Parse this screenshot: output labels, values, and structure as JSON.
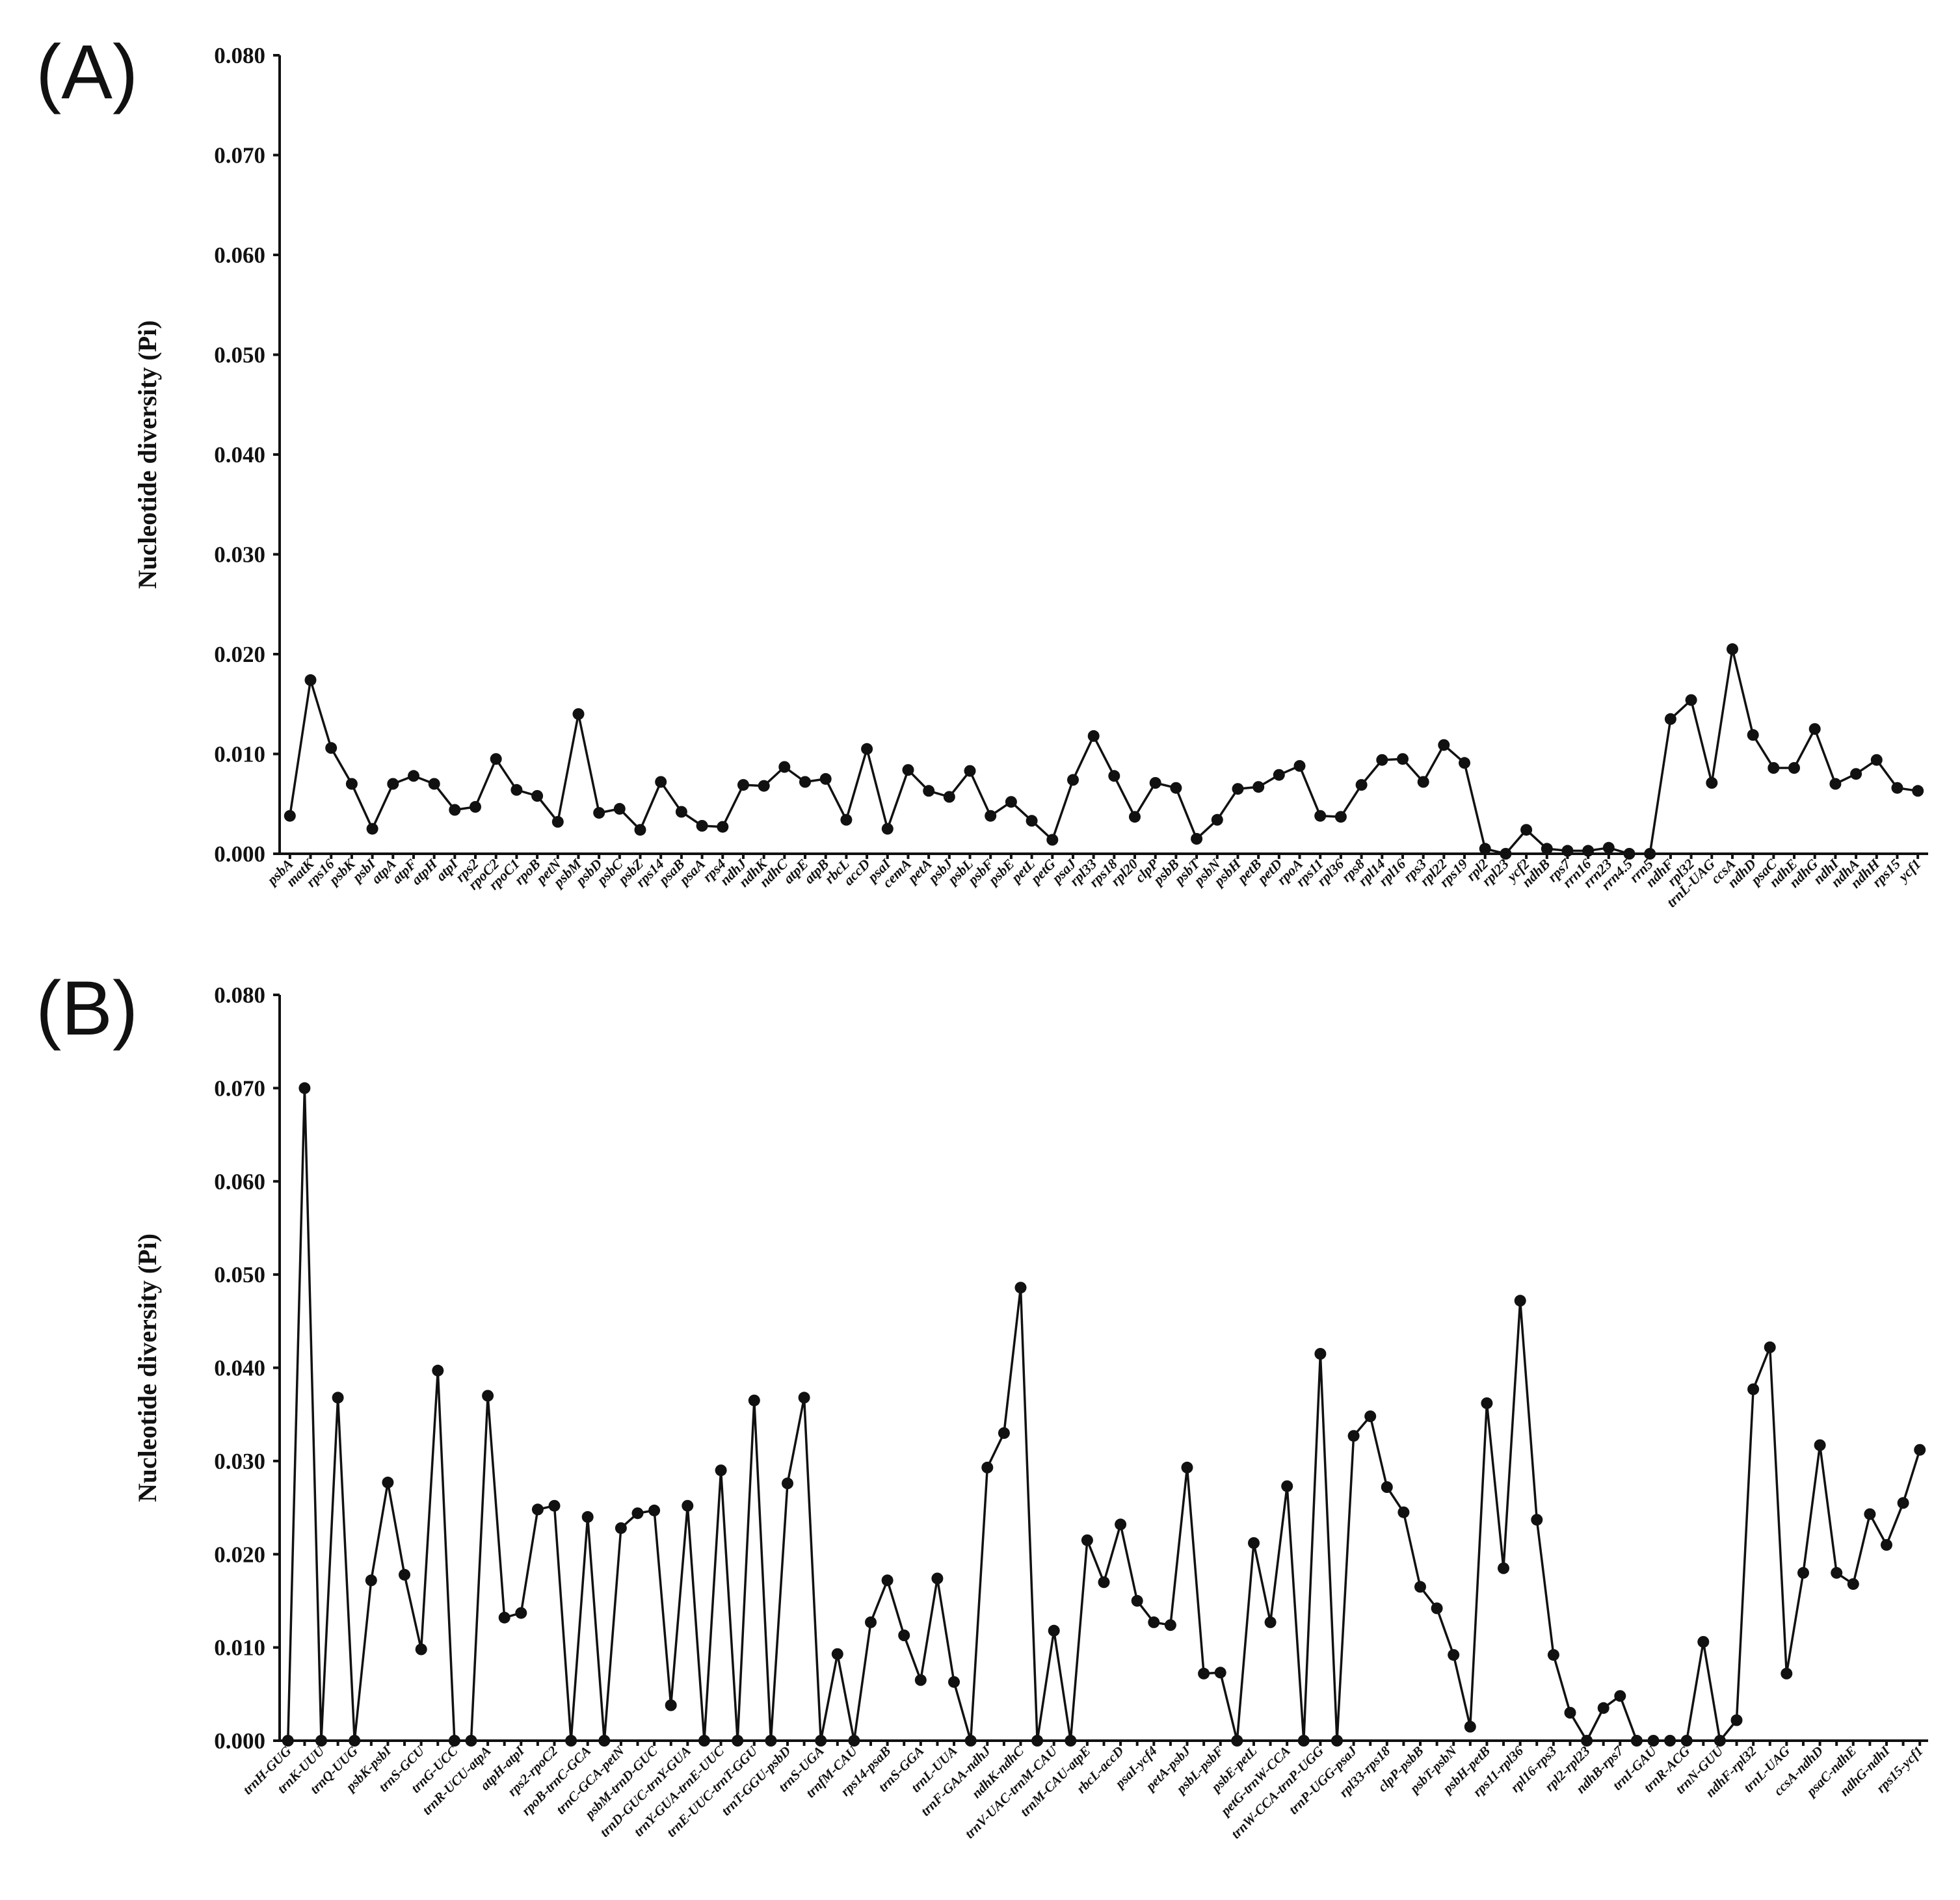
{
  "chart_data": [
    {
      "panel": "(A)",
      "type": "line",
      "ylabel": "Nucleotide diversity (Pi)",
      "xlabel": "",
      "ylim": [
        0,
        0.08
      ],
      "yticks": [
        "0.000",
        "0.010",
        "0.020",
        "0.030",
        "0.040",
        "0.050",
        "0.060",
        "0.070",
        "0.080"
      ],
      "grid": false,
      "categories": [
        "psbA",
        "matK",
        "rps16",
        "psbK",
        "psbI",
        "atpA",
        "atpF",
        "atpH",
        "atpI",
        "rps2",
        "rpoC2",
        "rpoC1",
        "rpoB",
        "petN",
        "psbM",
        "psbD",
        "psbC",
        "psbZ",
        "rps14",
        "psaB",
        "psaA",
        "rps4",
        "ndhJ",
        "ndhK",
        "ndhC",
        "atpE",
        "atpB",
        "rbcL",
        "accD",
        "psaI",
        "cemA",
        "petA",
        "psbJ",
        "psbL",
        "psbF",
        "psbE",
        "petL",
        "petG",
        "psaJ",
        "rpl33",
        "rps18",
        "rpl20",
        "clpP",
        "psbB",
        "psbT",
        "psbN",
        "psbH",
        "petB",
        "petD",
        "rpoA",
        "rps11",
        "rpl36",
        "rps8",
        "rpl14",
        "rpl16",
        "rps3",
        "rpl22",
        "rps19",
        "rpl2",
        "rpl23",
        "ycf2",
        "ndhB",
        "rps7",
        "rrn16",
        "rrn23",
        "rrn4.5",
        "rrn5",
        "ndhF",
        "rpl32",
        "trnL-UAG",
        "ccsA",
        "ndhD",
        "psaC",
        "ndhE",
        "ndhG",
        "ndhI",
        "ndhA",
        "ndhH",
        "rps15",
        "ycf1"
      ],
      "values": [
        0.0038,
        0.0174,
        0.0106,
        0.007,
        0.0025,
        0.007,
        0.0078,
        0.007,
        0.0044,
        0.0047,
        0.0095,
        0.0064,
        0.0058,
        0.0032,
        0.014,
        0.0041,
        0.0045,
        0.0024,
        0.0072,
        0.0042,
        0.0028,
        0.0027,
        0.0069,
        0.0068,
        0.0087,
        0.0072,
        0.0075,
        0.0034,
        0.0105,
        0.0025,
        0.0084,
        0.0063,
        0.0057,
        0.0083,
        0.0038,
        0.0052,
        0.0033,
        0.0014,
        0.0074,
        0.0118,
        0.0078,
        0.0037,
        0.0071,
        0.0066,
        0.0015,
        0.0034,
        0.0065,
        0.0067,
        0.0079,
        0.0088,
        0.0038,
        0.0037,
        0.0069,
        0.0094,
        0.0095,
        0.0072,
        0.0109,
        0.0091,
        0.0005,
        0.0,
        0.0024,
        0.0005,
        0.0003,
        0.0003,
        0.0006,
        0.0,
        0.0,
        0.0135,
        0.0154,
        0.0071,
        0.0205,
        0.0119,
        0.0086,
        0.0086,
        0.0125,
        0.007,
        0.008,
        0.0094,
        0.0066,
        0.0063
      ]
    },
    {
      "panel": "(B)",
      "type": "line",
      "ylabel": "Nucleotide diversity (Pi)",
      "xlabel": "",
      "ylim": [
        0,
        0.08
      ],
      "yticks": [
        "0.000",
        "0.010",
        "0.020",
        "0.030",
        "0.040",
        "0.050",
        "0.060",
        "0.070",
        "0.080"
      ],
      "grid": false,
      "categories": [
        "trnH-GUG",
        "",
        "trnK-UUU",
        "",
        "trnQ-UUG",
        "",
        "psbK-psbI",
        "",
        "trnS-GCU",
        "",
        "trnG-UCC",
        "",
        "trnR-UCU-atpA",
        "",
        "atpH-atpI",
        "",
        "rps2-rpoC2",
        "",
        "rpoB-trnC-GCA",
        "",
        "trnC-GCA-petN",
        "",
        "psbM-trnD-GUC",
        "",
        "trnD-GUC-trnY-GUA",
        "",
        "trnY-GUA-trnE-UUC",
        "",
        "trnE-UUC-trnT-GGU",
        "",
        "trnT-GGU-psbD",
        "",
        "trnS-UGA",
        "",
        "trnfM-CAU",
        "",
        "rps14-psaB",
        "",
        "trnS-GGA",
        "",
        "trnL-UUA",
        "",
        "trnF-GAA-ndhJ",
        "",
        "ndhK-ndhC",
        "",
        "trnV-UAC-trnM-CAU",
        "",
        "trnM-CAU-atpE",
        "",
        "rbcL-accD",
        "",
        "psaI-ycf4",
        "",
        "petA-psbJ",
        "",
        "psbL-psbF",
        "",
        "psbE-petL",
        "",
        "petG-trnW-CCA",
        "",
        "trnW-CCA-trnP-UGG",
        "",
        "trnP-UGG-psaJ",
        "",
        "rpl33-rps18",
        "",
        "clpP-psbB",
        "",
        "psbT-psbN",
        "",
        "psbH-petB",
        "",
        "rps11-rpl36",
        "",
        "rpl16-rps3",
        "",
        "rpl2-rpl23",
        "",
        "ndhB-rps7",
        "",
        "trnI-GAU",
        "",
        "trnR-ACG",
        "",
        "trnN-GUU",
        "",
        "ndhF-rpl32",
        "",
        "trnL-UAG",
        "",
        "ccsA-ndhD",
        "",
        "psaC-ndhE",
        "",
        "ndhG-ndhI",
        "",
        "rps15-ycf1"
      ],
      "values": [
        0.0,
        0.07,
        0.0,
        0.0368,
        0.0,
        0.0172,
        0.0277,
        0.0178,
        0.0098,
        0.0397,
        0.0,
        0.0,
        0.037,
        0.0132,
        0.0137,
        0.0248,
        0.0252,
        0.0,
        0.024,
        0.0,
        0.0228,
        0.0244,
        0.0247,
        0.0038,
        0.0252,
        0.0,
        0.029,
        0.0,
        0.0365,
        0.0,
        0.0276,
        0.0368,
        0.0,
        0.0093,
        0.0,
        0.0127,
        0.0172,
        0.0113,
        0.0065,
        0.0174,
        0.0063,
        0.0,
        0.0293,
        0.033,
        0.0486,
        0.0,
        0.0118,
        0.0,
        0.0215,
        0.017,
        0.0232,
        0.015,
        0.0127,
        0.0124,
        0.0293,
        0.0072,
        0.0073,
        0.0,
        0.0212,
        0.0127,
        0.0273,
        0.0,
        0.0415,
        0.0,
        0.0327,
        0.0348,
        0.0272,
        0.0245,
        0.0165,
        0.0142,
        0.0092,
        0.0015,
        0.0362,
        0.0185,
        0.0472,
        0.0237,
        0.0092,
        0.003,
        0.0,
        0.0035,
        0.0048,
        0.0,
        0.0,
        0.0,
        0.0,
        0.0106,
        0.0,
        0.0022,
        0.0377,
        0.0422,
        0.0072,
        0.018,
        0.0317,
        0.018,
        0.0168,
        0.0243,
        0.021,
        0.0255,
        0.0312
      ]
    }
  ]
}
